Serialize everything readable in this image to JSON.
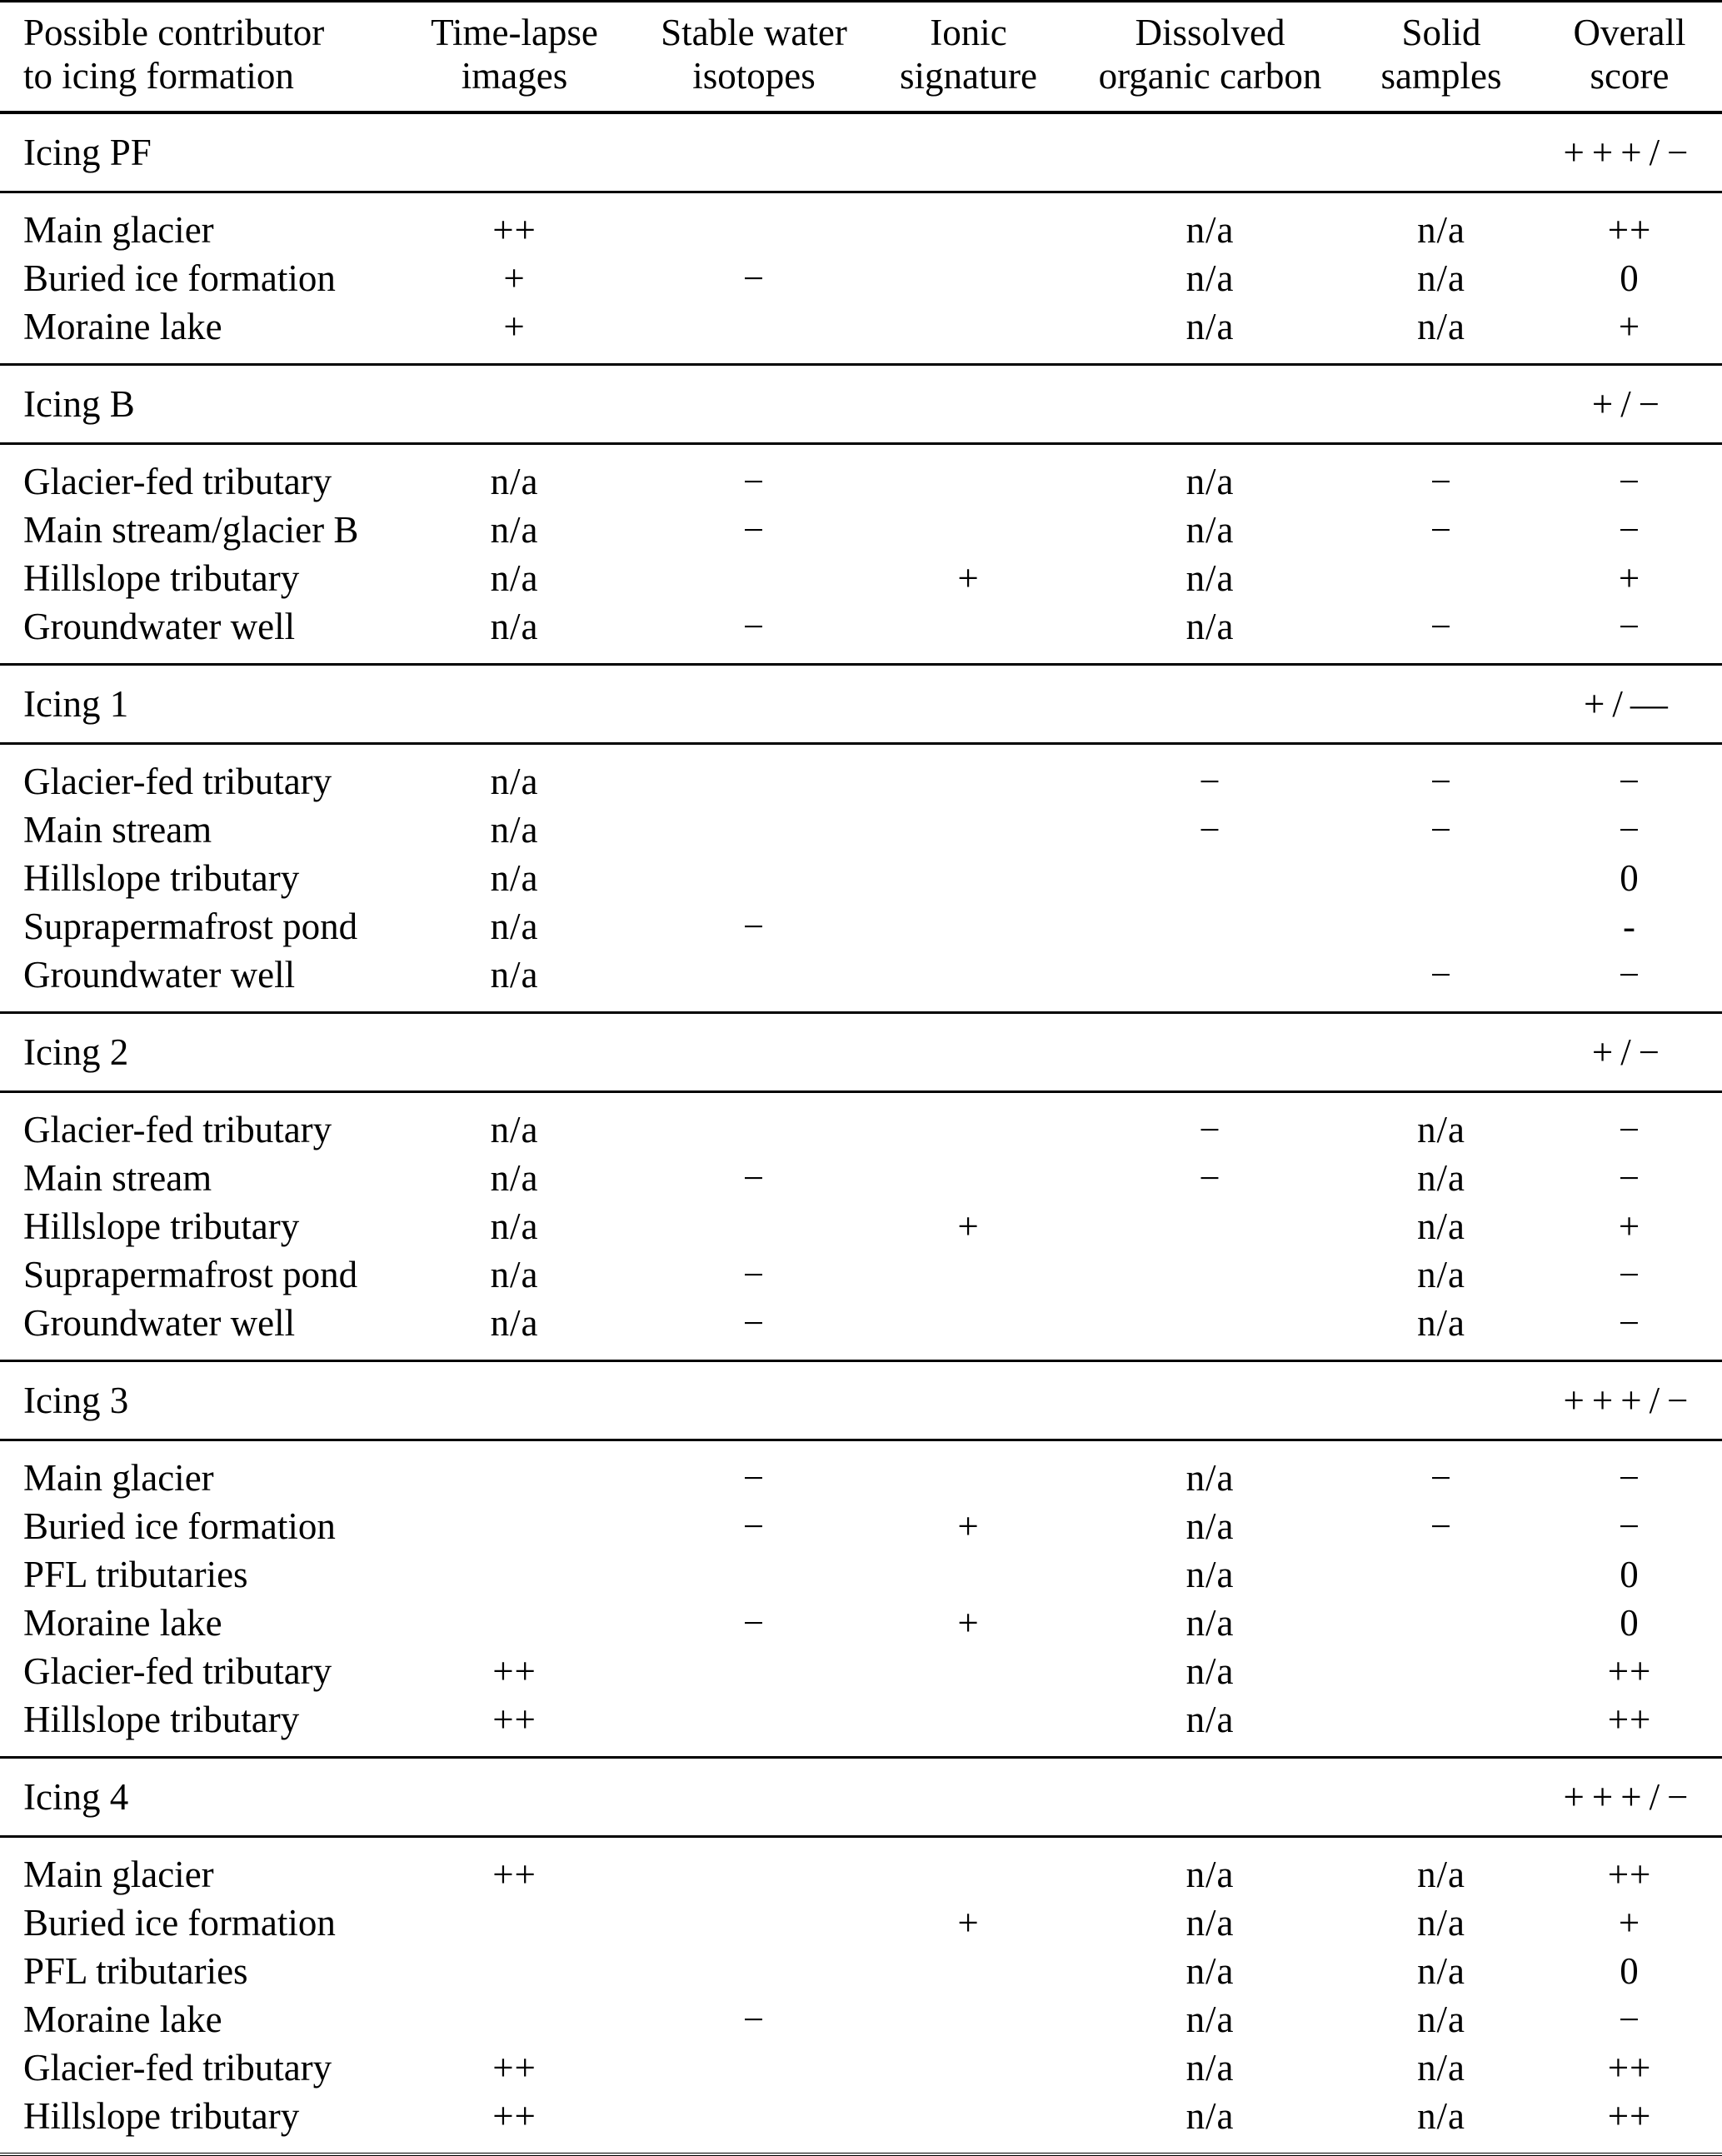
{
  "table": {
    "columns": [
      {
        "id": "contributor",
        "lines": [
          "Possible contributor",
          "to icing formation"
        ]
      },
      {
        "id": "time_lapse_images",
        "lines": [
          "Time-lapse",
          "images"
        ]
      },
      {
        "id": "stable_water_isotopes",
        "lines": [
          "Stable water",
          "isotopes"
        ]
      },
      {
        "id": "ionic_signature",
        "lines": [
          "Ionic",
          "signature"
        ]
      },
      {
        "id": "dissolved_organic_carbon",
        "lines": [
          "Dissolved",
          "organic carbon"
        ]
      },
      {
        "id": "solid_samples",
        "lines": [
          "Solid",
          "samples"
        ]
      },
      {
        "id": "overall_score",
        "lines": [
          "Overall",
          "score"
        ]
      }
    ],
    "sections": [
      {
        "title": "Icing PF",
        "overall": "+++/−",
        "rows": [
          {
            "cells": [
              "Main glacier",
              "++",
              "",
              "",
              "n/a",
              "n/a",
              "++"
            ]
          },
          {
            "cells": [
              "Buried ice formation",
              "+",
              "−",
              "",
              "n/a",
              "n/a",
              "0"
            ]
          },
          {
            "cells": [
              "Moraine lake",
              "+",
              "",
              "",
              "n/a",
              "n/a",
              "+"
            ]
          }
        ]
      },
      {
        "title": "Icing B",
        "overall": "+/−",
        "rows": [
          {
            "cells": [
              "Glacier-fed tributary",
              "n/a",
              "−",
              "",
              "n/a",
              "−",
              "−"
            ]
          },
          {
            "cells": [
              "Main stream/glacier B",
              "n/a",
              "−",
              "",
              "n/a",
              "−",
              "−"
            ]
          },
          {
            "cells": [
              "Hillslope tributary",
              "n/a",
              "",
              "+",
              "n/a",
              "",
              "+"
            ]
          },
          {
            "cells": [
              "Groundwater well",
              "n/a",
              "−",
              "",
              "n/a",
              "−",
              "−"
            ]
          }
        ]
      },
      {
        "title": "Icing 1",
        "overall": "+/—",
        "rows": [
          {
            "cells": [
              "Glacier-fed tributary",
              "n/a",
              "",
              "",
              "−",
              "−",
              "−"
            ]
          },
          {
            "cells": [
              "Main stream",
              "n/a",
              "",
              "",
              "−",
              "−",
              "−"
            ]
          },
          {
            "cells": [
              "Hillslope tributary",
              "n/a",
              "",
              "",
              "",
              "",
              "0"
            ]
          },
          {
            "cells": [
              "Suprapermafrost pond",
              "n/a",
              "−",
              "",
              "",
              "",
              "-"
            ]
          },
          {
            "cells": [
              "Groundwater well",
              "n/a",
              "",
              "",
              "",
              "−",
              "−"
            ]
          }
        ]
      },
      {
        "title": "Icing 2",
        "overall": "+/−",
        "rows": [
          {
            "cells": [
              "Glacier-fed tributary",
              "n/a",
              "",
              "",
              "−",
              "n/a",
              "−"
            ]
          },
          {
            "cells": [
              "Main stream",
              "n/a",
              "−",
              "",
              "−",
              "n/a",
              "−"
            ]
          },
          {
            "cells": [
              "Hillslope tributary",
              "n/a",
              "",
              "+",
              "",
              "n/a",
              "+"
            ]
          },
          {
            "cells": [
              "Suprapermafrost pond",
              "n/a",
              "−",
              "",
              "",
              "n/a",
              "−"
            ]
          },
          {
            "cells": [
              "Groundwater well",
              "n/a",
              "−",
              "",
              "",
              "n/a",
              "−"
            ]
          }
        ]
      },
      {
        "title": "Icing 3",
        "overall": "+++/−",
        "rows": [
          {
            "cells": [
              "Main glacier",
              "",
              "−",
              "",
              "n/a",
              "−",
              "−"
            ]
          },
          {
            "cells": [
              "Buried ice formation",
              "",
              "−",
              "+",
              "n/a",
              "−",
              "−"
            ]
          },
          {
            "cells": [
              "PFL tributaries",
              "",
              "",
              "",
              "n/a",
              "",
              "0"
            ]
          },
          {
            "cells": [
              "Moraine lake",
              "",
              "−",
              "+",
              "n/a",
              "",
              "0"
            ]
          },
          {
            "cells": [
              "Glacier-fed tributary",
              "++",
              "",
              "",
              "n/a",
              "",
              "++"
            ]
          },
          {
            "cells": [
              "Hillslope tributary",
              "++",
              "",
              "",
              "n/a",
              "",
              "++"
            ]
          }
        ]
      },
      {
        "title": "Icing 4",
        "overall": "+++/−",
        "rows": [
          {
            "cells": [
              "Main glacier",
              "++",
              "",
              "",
              "n/a",
              "n/a",
              "++"
            ]
          },
          {
            "cells": [
              "Buried ice formation",
              "",
              "",
              "+",
              "n/a",
              "n/a",
              "+"
            ]
          },
          {
            "cells": [
              "PFL tributaries",
              "",
              "",
              "",
              "n/a",
              "n/a",
              "0"
            ]
          },
          {
            "cells": [
              "Moraine lake",
              "",
              "−",
              "",
              "n/a",
              "n/a",
              "−"
            ]
          },
          {
            "cells": [
              "Glacier-fed tributary",
              "++",
              "",
              "",
              "n/a",
              "n/a",
              "++"
            ]
          },
          {
            "cells": [
              "Hillslope tributary",
              "++",
              "",
              "",
              "n/a",
              "n/a",
              "++"
            ]
          }
        ]
      }
    ]
  }
}
